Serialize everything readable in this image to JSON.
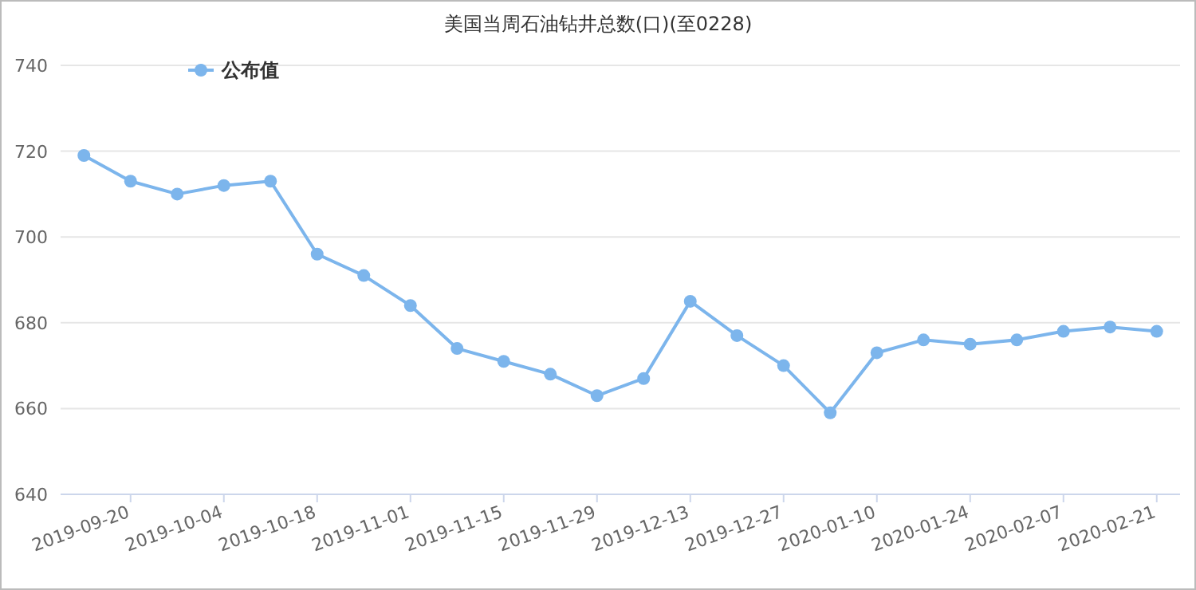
{
  "chart_data": {
    "type": "line",
    "title": "美国当周石油钻井总数(口)(至0228)",
    "categories": [
      null,
      "2019-09-20",
      null,
      "2019-10-04",
      null,
      "2019-10-18",
      null,
      "2019-11-01",
      null,
      "2019-11-15",
      null,
      "2019-11-29",
      null,
      "2019-12-13",
      null,
      "2019-12-27",
      null,
      "2020-01-10",
      null,
      "2020-01-24",
      null,
      "2020-02-07",
      null,
      "2020-02-21"
    ],
    "series": [
      {
        "name": "公布值",
        "color": "#7cb5ec",
        "values": [
          719,
          713,
          710,
          712,
          713,
          696,
          691,
          684,
          674,
          671,
          668,
          663,
          667,
          685,
          677,
          670,
          659,
          673,
          676,
          675,
          676,
          678,
          679,
          678
        ]
      }
    ],
    "ylim": [
      640,
      740
    ],
    "yticks": [
      640,
      660,
      680,
      700,
      720,
      740
    ],
    "grid": "y",
    "legend": "top left",
    "marker": "circle"
  }
}
